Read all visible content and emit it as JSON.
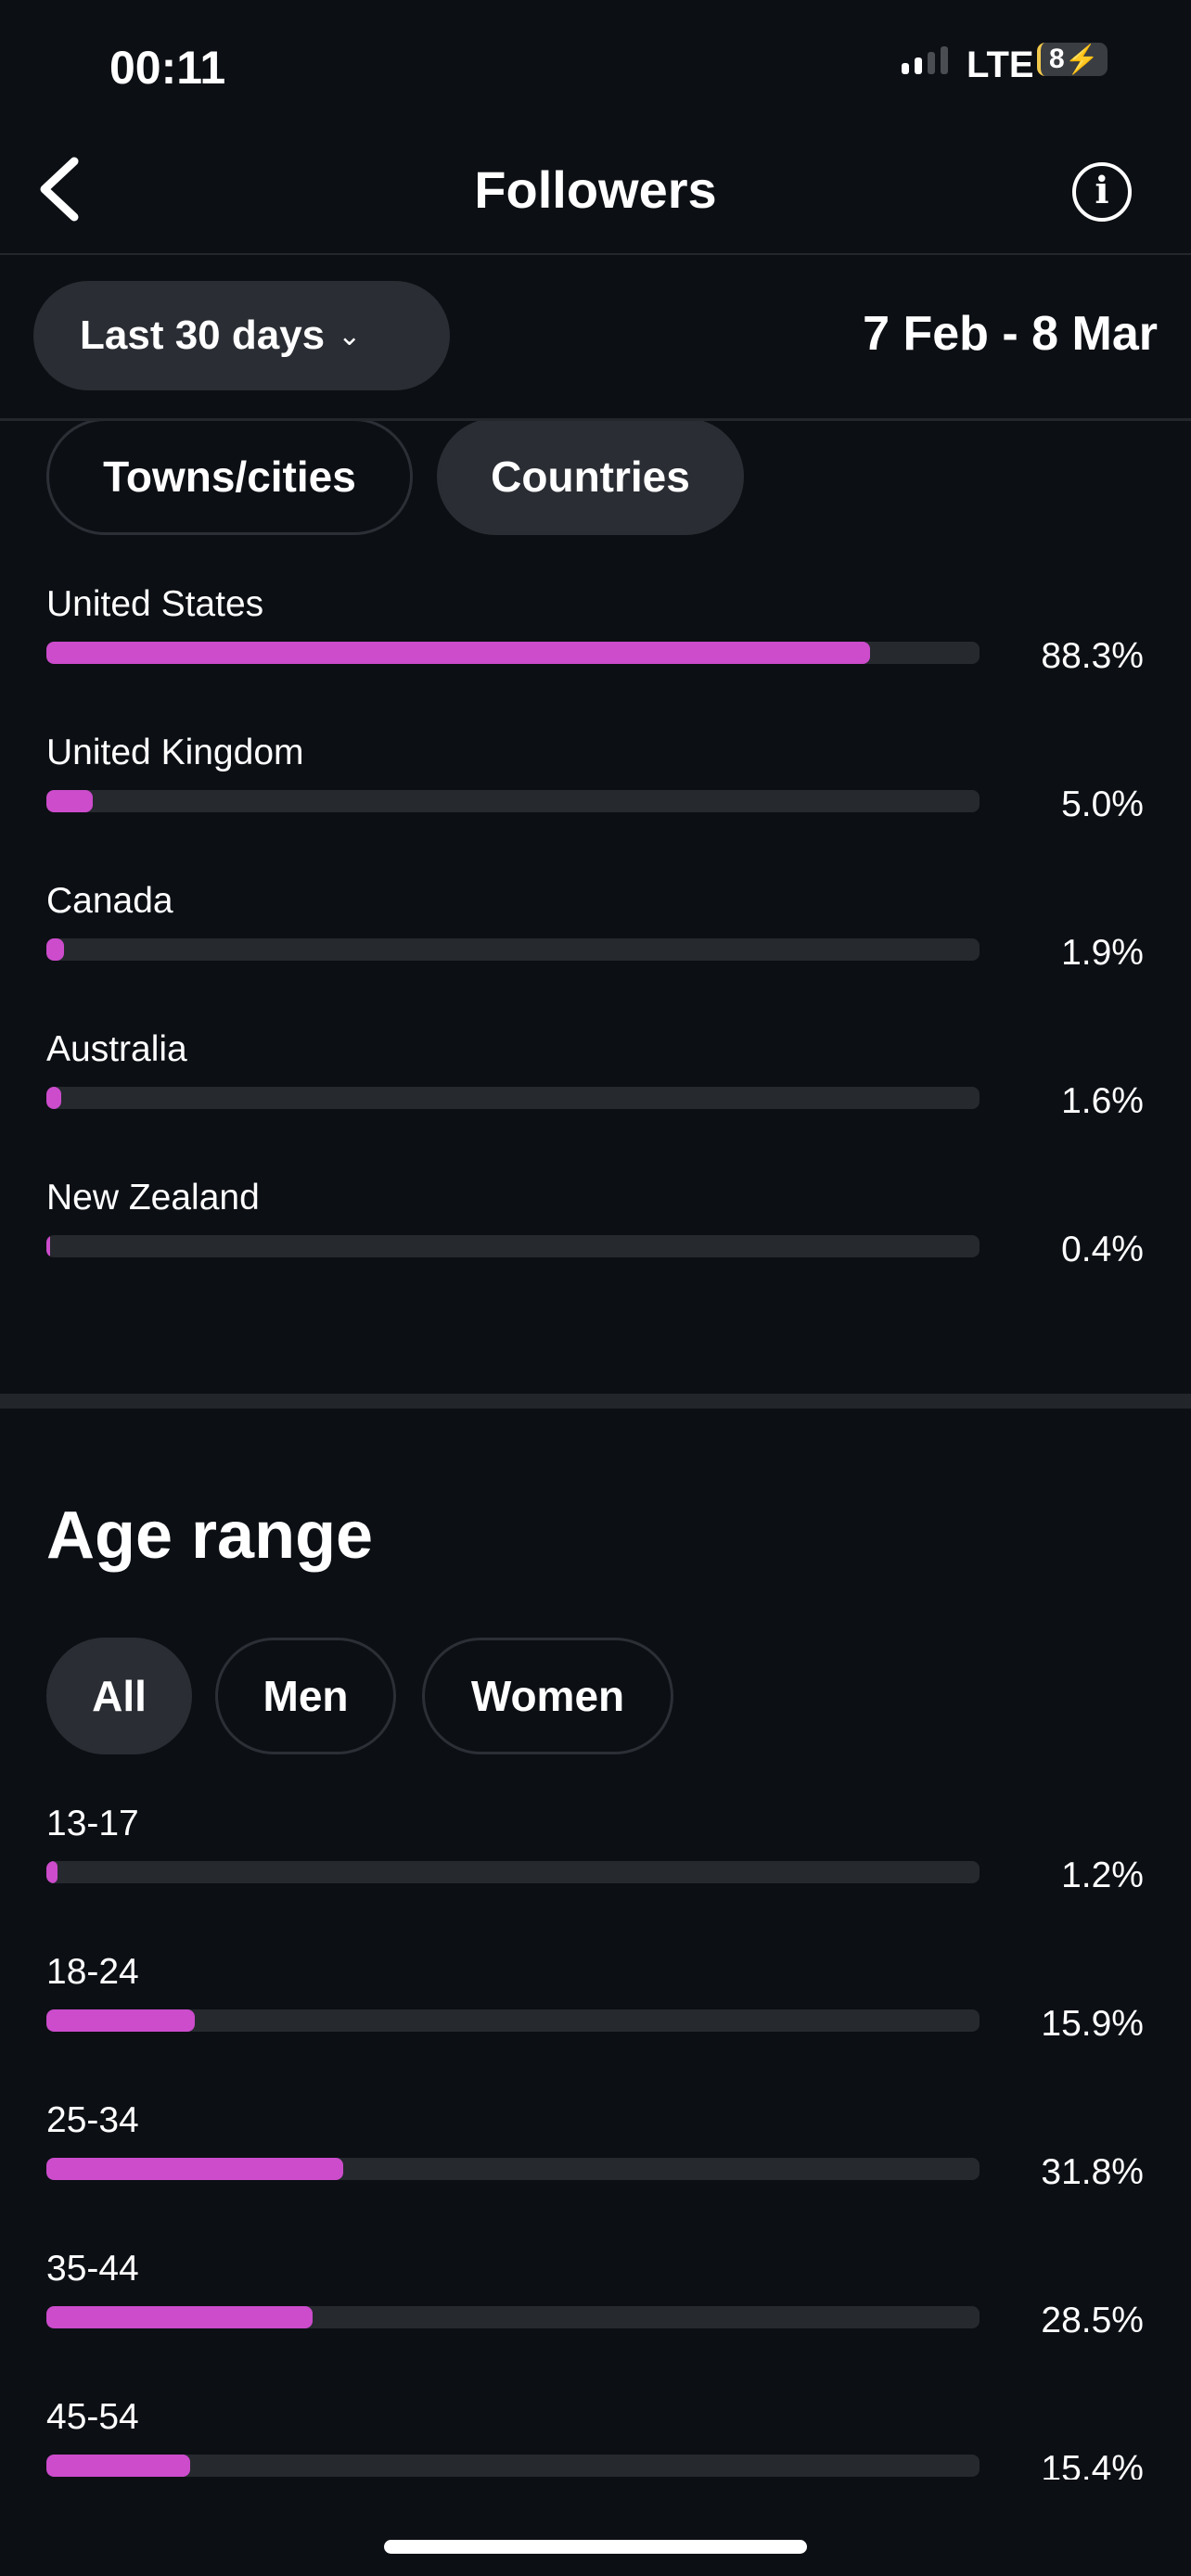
{
  "status": {
    "time": "00:11",
    "network": "LTE",
    "battery": "8",
    "signal_bars": 2
  },
  "header": {
    "title": "Followers"
  },
  "filter": {
    "range_label": "Last 30 days",
    "dates": "7 Feb - 8 Mar"
  },
  "location": {
    "tabs": [
      {
        "label": "Towns/cities",
        "selected": false
      },
      {
        "label": "Countries",
        "selected": true
      }
    ],
    "items": [
      {
        "label": "United States",
        "value": 88.3,
        "pct": "88.3%"
      },
      {
        "label": "United Kingdom",
        "value": 5.0,
        "pct": "5.0%"
      },
      {
        "label": "Canada",
        "value": 1.9,
        "pct": "1.9%"
      },
      {
        "label": "Australia",
        "value": 1.6,
        "pct": "1.6%"
      },
      {
        "label": "New Zealand",
        "value": 0.4,
        "pct": "0.4%"
      }
    ]
  },
  "age": {
    "title": "Age range",
    "tabs": [
      {
        "label": "All",
        "selected": true
      },
      {
        "label": "Men",
        "selected": false
      },
      {
        "label": "Women",
        "selected": false
      }
    ],
    "items": [
      {
        "label": "13-17",
        "value": 1.2,
        "pct": "1.2%"
      },
      {
        "label": "18-24",
        "value": 15.9,
        "pct": "15.9%"
      },
      {
        "label": "25-34",
        "value": 31.8,
        "pct": "31.8%"
      },
      {
        "label": "35-44",
        "value": 28.5,
        "pct": "28.5%"
      },
      {
        "label": "45-54",
        "value": 15.4,
        "pct": "15.4%"
      }
    ]
  },
  "colors": {
    "accent": "#cc4ccc",
    "background": "#0c0f14",
    "track": "#26292e"
  }
}
